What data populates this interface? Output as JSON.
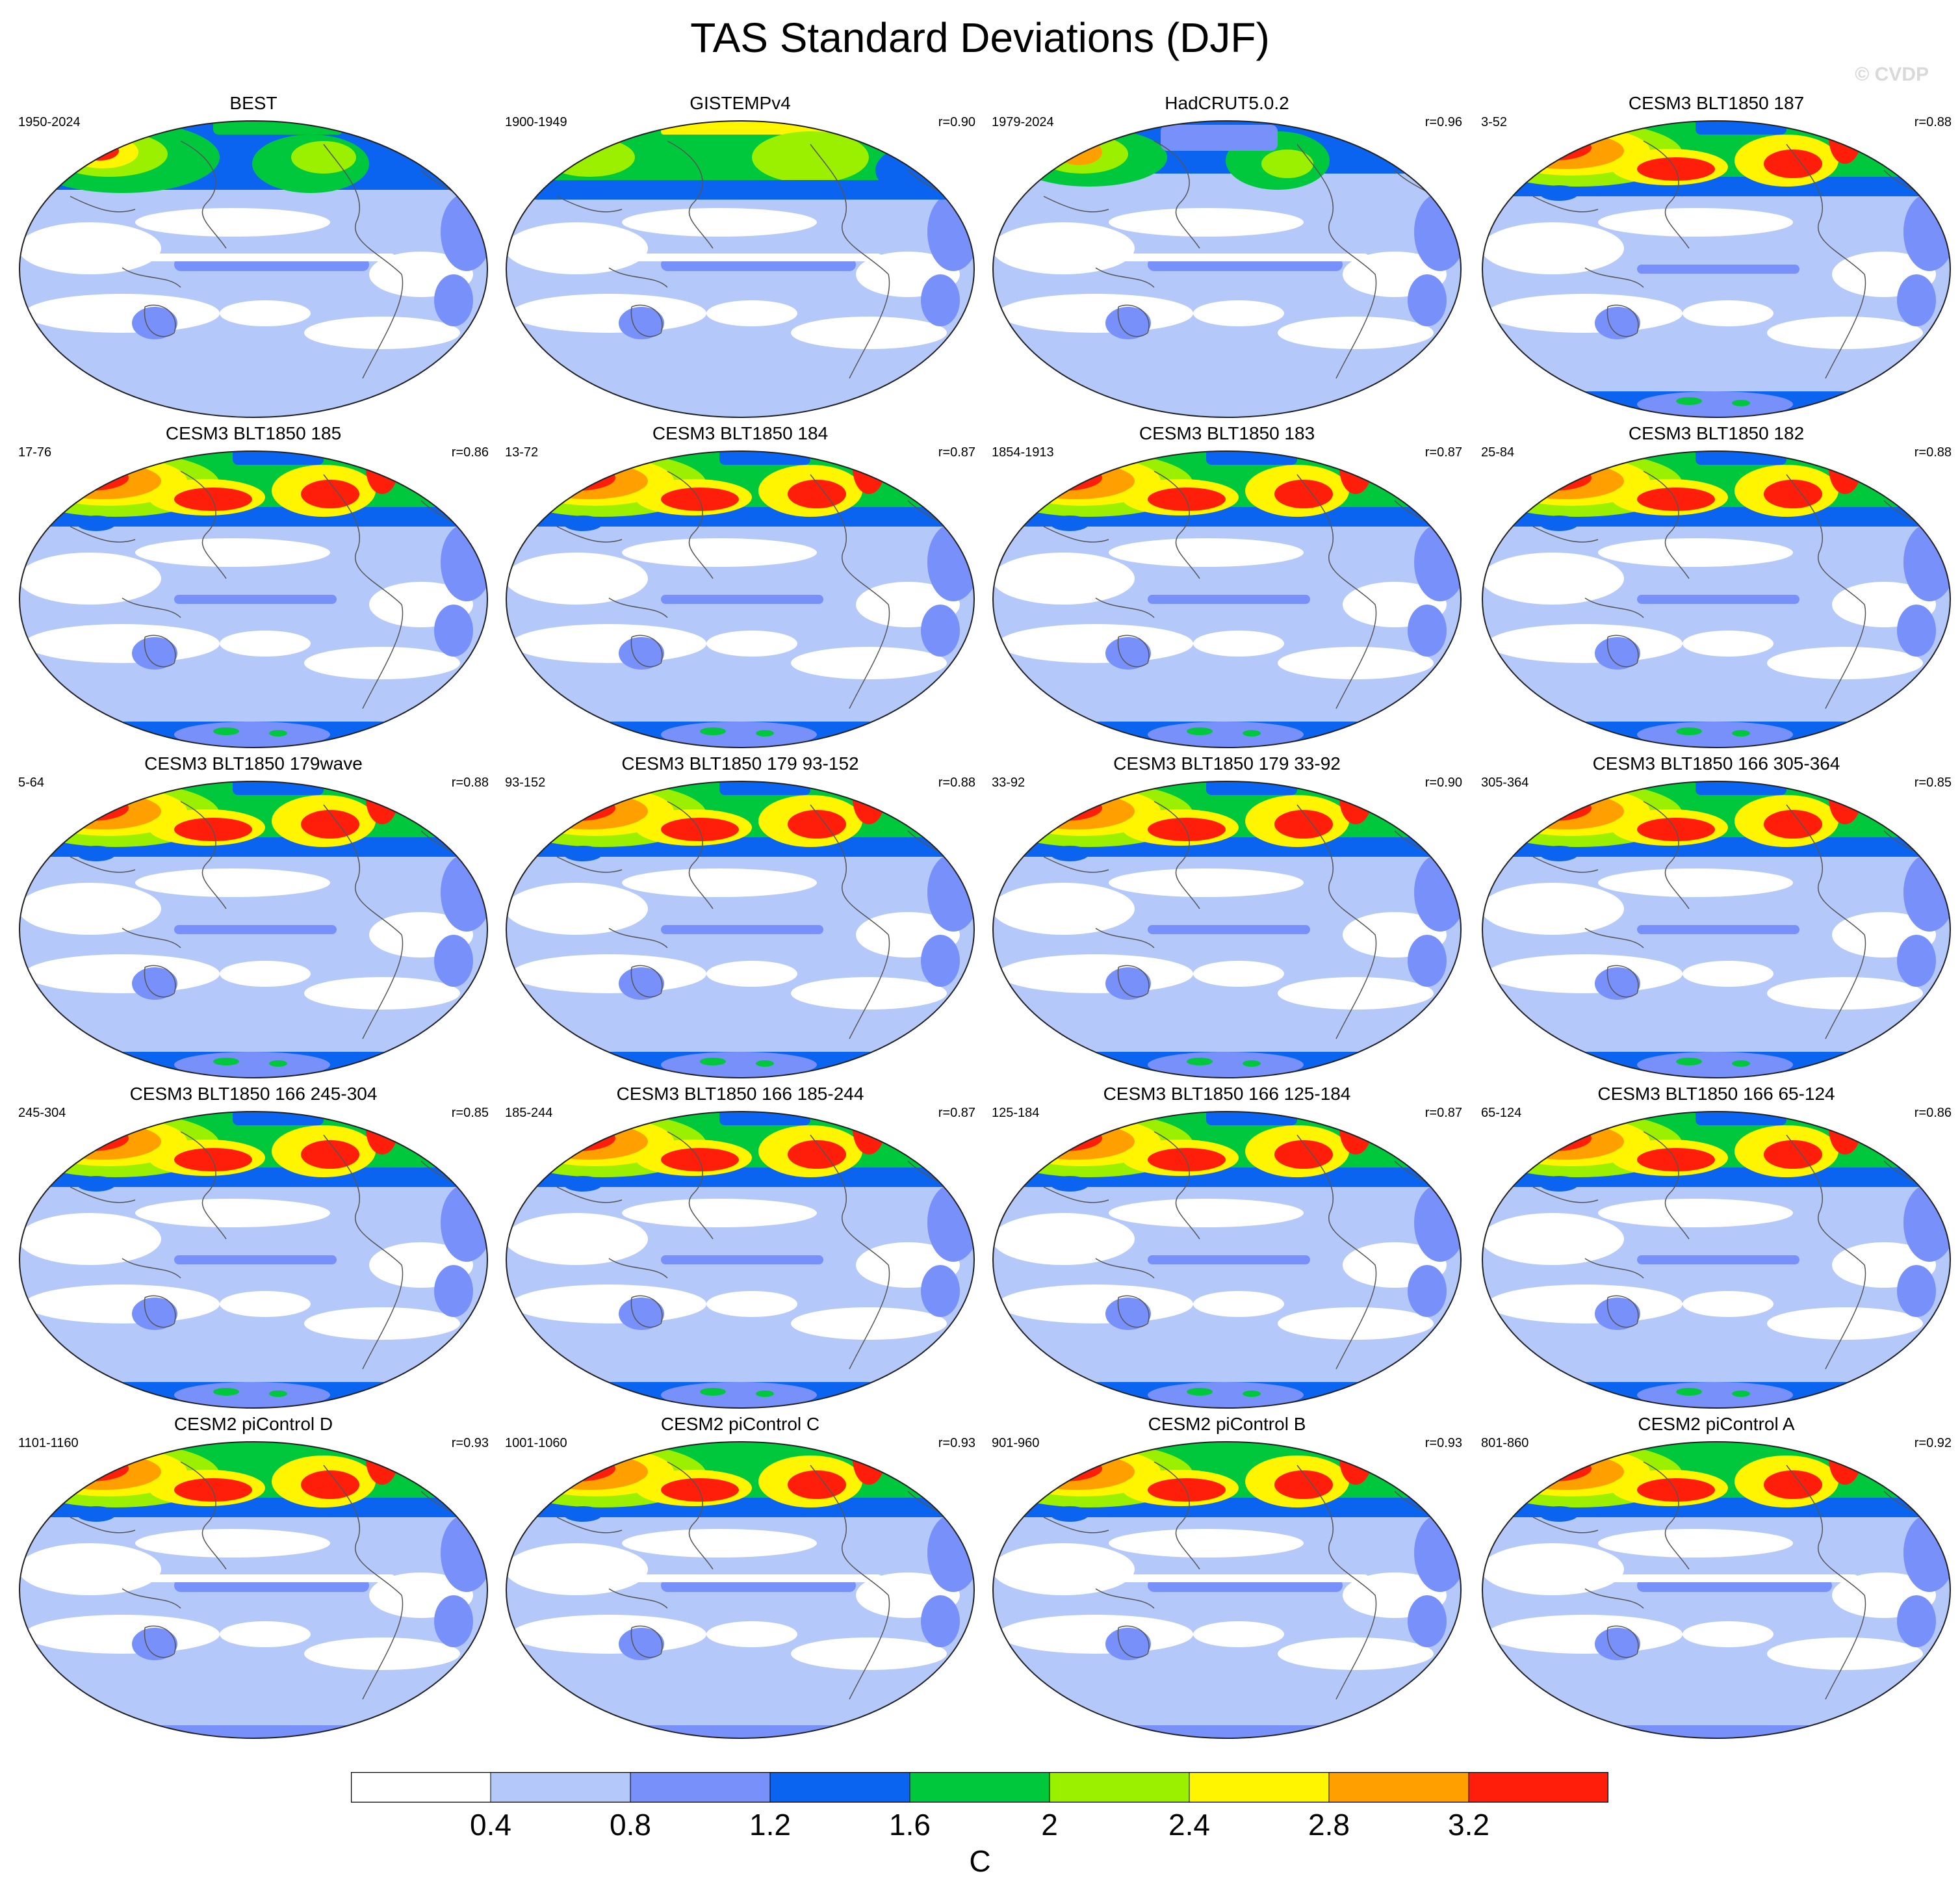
{
  "title": "TAS Standard Deviations (DJF)",
  "watermark": "© CVDP",
  "panels": [
    {
      "title": "BEST",
      "years": "1950-2024",
      "r": "",
      "style": "obs"
    },
    {
      "title": "GISTEMPv4",
      "years": "1900-1949",
      "r": "r=0.90",
      "style": "gis"
    },
    {
      "title": "HadCRUT5.0.2",
      "years": "1979-2024",
      "r": "r=0.96",
      "style": "had"
    },
    {
      "title": "CESM3 BLT1850 187",
      "years": "3-52",
      "r": "r=0.88",
      "style": "cesm3"
    },
    {
      "title": "CESM3 BLT1850 185",
      "years": "17-76",
      "r": "r=0.86",
      "style": "cesm3"
    },
    {
      "title": "CESM3 BLT1850 184",
      "years": "13-72",
      "r": "r=0.87",
      "style": "cesm3"
    },
    {
      "title": "CESM3 BLT1850 183",
      "years": "1854-1913",
      "r": "r=0.87",
      "style": "cesm3"
    },
    {
      "title": "CESM3 BLT1850 182",
      "years": "25-84",
      "r": "r=0.88",
      "style": "cesm3"
    },
    {
      "title": "CESM3 BLT1850 179wave",
      "years": "5-64",
      "r": "r=0.88",
      "style": "cesm3"
    },
    {
      "title": "CESM3 BLT1850 179 93-152",
      "years": "93-152",
      "r": "r=0.88",
      "style": "cesm3"
    },
    {
      "title": "CESM3 BLT1850 179 33-92",
      "years": "33-92",
      "r": "r=0.90",
      "style": "cesm3"
    },
    {
      "title": "CESM3 BLT1850 166 305-364",
      "years": "305-364",
      "r": "r=0.85",
      "style": "cesm3"
    },
    {
      "title": "CESM3 BLT1850 166 245-304",
      "years": "245-304",
      "r": "r=0.85",
      "style": "cesm3"
    },
    {
      "title": "CESM3 BLT1850 166 185-244",
      "years": "185-244",
      "r": "r=0.87",
      "style": "cesm3"
    },
    {
      "title": "CESM3 BLT1850 166 125-184",
      "years": "125-184",
      "r": "r=0.87",
      "style": "cesm3"
    },
    {
      "title": "CESM3 BLT1850 166 65-124",
      "years": "65-124",
      "r": "r=0.86",
      "style": "cesm3"
    },
    {
      "title": "CESM2 piControl D",
      "years": "1101-1160",
      "r": "r=0.93",
      "style": "cesm2"
    },
    {
      "title": "CESM2 piControl C",
      "years": "1001-1060",
      "r": "r=0.93",
      "style": "cesm2"
    },
    {
      "title": "CESM2 piControl B",
      "years": "901-960",
      "r": "r=0.93",
      "style": "cesm2"
    },
    {
      "title": "CESM2 piControl A",
      "years": "801-860",
      "r": "r=0.92",
      "style": "cesm2"
    }
  ],
  "colorbar": {
    "colors": [
      "#ffffff",
      "#b4c8fa",
      "#7890fa",
      "#0a64f0",
      "#00c83c",
      "#9bf000",
      "#fff500",
      "#ffa000",
      "#ff1e0a"
    ],
    "labels": [
      "0.4",
      "0.8",
      "1.2",
      "1.6",
      "2",
      "2.4",
      "2.8",
      "3.2"
    ],
    "units": "C"
  }
}
